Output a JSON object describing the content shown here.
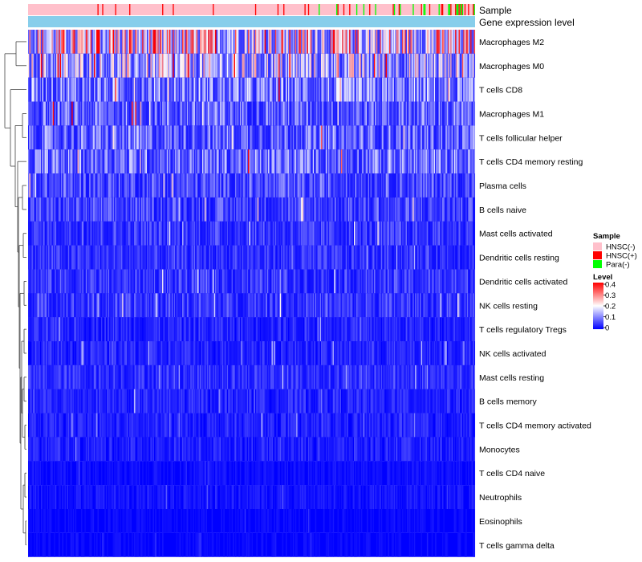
{
  "chart_data": {
    "type": "heatmap",
    "annotation_tracks": [
      "Sample",
      "Gene expression level"
    ],
    "rows": [
      "Macrophages M2",
      "Macrophages M0",
      "T cells CD8",
      "Macrophages M1",
      "T cells follicular helper",
      "T cells CD4 memory resting",
      "Plasma cells",
      "B cells naive",
      "Mast cells activated",
      "Dendritic cells resting",
      "Dendritic cells activated",
      "NK cells resting",
      "T cells regulatory  Tregs",
      "NK cells activated",
      "Mast cells resting",
      "B cells memory",
      "T cells CD4 memory activated",
      "Monocytes",
      "T cells CD4 naive",
      "Neutrophils",
      "Eosinophils",
      "T cells gamma delta"
    ],
    "row_mean_levels": [
      0.22,
      0.16,
      0.11,
      0.09,
      0.09,
      0.1,
      0.07,
      0.06,
      0.05,
      0.045,
      0.05,
      0.05,
      0.035,
      0.035,
      0.045,
      0.035,
      0.03,
      0.03,
      0.015,
      0.02,
      0.01,
      0.01
    ],
    "sample_legend": {
      "title": "Sample",
      "entries": [
        {
          "label": "HNSC(-)",
          "color": "#ffc0cb"
        },
        {
          "label": "HNSC(+)",
          "color": "#ff0000"
        },
        {
          "label": "Para(-)",
          "color": "#00ff00"
        }
      ]
    },
    "level_legend": {
      "title": "Level",
      "ticks": [
        "0.4",
        "0.3",
        "0.2",
        "0.1",
        "0"
      ],
      "range": [
        0,
        0.4
      ],
      "colors": [
        "#0000ff",
        "#ffffff",
        "#ff0000"
      ]
    },
    "gene_expression_color": "#87ceeb",
    "dendrogram": "rows clustered"
  }
}
